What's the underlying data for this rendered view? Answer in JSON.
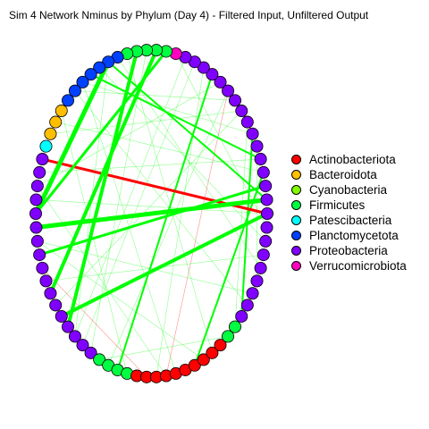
{
  "title": "Sim 4 Network Nminus by Phylum (Day 4) - Filtered Input, Unfiltered Output",
  "legend": [
    {
      "label": "Actinobacteriota",
      "color": "#ff0000"
    },
    {
      "label": "Bacteroidota",
      "color": "#ffbf00"
    },
    {
      "label": "Cyanobacteria",
      "color": "#80ff00"
    },
    {
      "label": "Firmicutes",
      "color": "#00ff40"
    },
    {
      "label": "Patescibacteria",
      "color": "#00ffff"
    },
    {
      "label": "Planctomycetota",
      "color": "#0040ff"
    },
    {
      "label": "Proteobacteria",
      "color": "#8000ff"
    },
    {
      "label": "Verrucomicrobiota",
      "color": "#ff00bf"
    }
  ],
  "edge_colors": {
    "positive": "#00ff00",
    "negative": "#ff0000"
  },
  "nodes": [
    "Proteobacteria",
    "Proteobacteria",
    "Proteobacteria",
    "Proteobacteria",
    "Proteobacteria",
    "Proteobacteria",
    "Proteobacteria",
    "Proteobacteria",
    "Proteobacteria",
    "Proteobacteria",
    "Proteobacteria",
    "Proteobacteria",
    "Proteobacteria",
    "Proteobacteria",
    "Proteobacteria",
    "Proteobacteria",
    "Verrucomicrobiota",
    "Firmicutes",
    "Firmicutes",
    "Firmicutes",
    "Firmicutes",
    "Firmicutes",
    "Planctomycetota",
    "Planctomycetota",
    "Planctomycetota",
    "Planctomycetota",
    "Planctomycetota",
    "Planctomycetota",
    "Planctomycetota",
    "Bacteroidota",
    "Bacteroidota",
    "Bacteroidota",
    "Patescibacteria",
    "Proteobacteria",
    "Proteobacteria",
    "Proteobacteria",
    "Proteobacteria",
    "Proteobacteria",
    "Proteobacteria",
    "Proteobacteria",
    "Proteobacteria",
    "Proteobacteria",
    "Proteobacteria",
    "Proteobacteria",
    "Proteobacteria",
    "Proteobacteria",
    "Proteobacteria",
    "Proteobacteria",
    "Proteobacteria",
    "Proteobacteria",
    "Firmicutes",
    "Firmicutes",
    "Firmicutes",
    "Firmicutes",
    "Actinobacteriota",
    "Actinobacteriota",
    "Actinobacteriota",
    "Actinobacteriota",
    "Actinobacteriota",
    "Actinobacteriota",
    "Actinobacteriota",
    "Actinobacteriota",
    "Actinobacteriota",
    "Actinobacteriota",
    "Firmicutes",
    "Firmicutes",
    "Proteobacteria",
    "Proteobacteria",
    "Proteobacteria",
    "Proteobacteria",
    "Proteobacteria",
    "Proteobacteria",
    "Proteobacteria",
    "Proteobacteria"
  ],
  "edges": [
    {
      "a": 0,
      "b": 33,
      "w": 3,
      "sign": "negative"
    },
    {
      "a": 0,
      "b": 45,
      "w": 4,
      "sign": "positive"
    },
    {
      "a": 1,
      "b": 38,
      "w": 5,
      "sign": "positive"
    },
    {
      "a": 2,
      "b": 40,
      "w": 3,
      "sign": "positive"
    },
    {
      "a": 3,
      "b": 60,
      "w": 2,
      "sign": "positive"
    },
    {
      "a": 4,
      "b": 34,
      "w": 1,
      "sign": "positive"
    },
    {
      "a": 6,
      "b": 66,
      "w": 2,
      "sign": "positive"
    },
    {
      "a": 8,
      "b": 31,
      "w": 1,
      "sign": "positive"
    },
    {
      "a": 10,
      "b": 57,
      "w": 1,
      "sign": "negative"
    },
    {
      "a": 12,
      "b": 52,
      "w": 2,
      "sign": "positive"
    },
    {
      "a": 14,
      "b": 48,
      "w": 1,
      "sign": "positive"
    },
    {
      "a": 17,
      "b": 37,
      "w": 3,
      "sign": "positive"
    },
    {
      "a": 18,
      "b": 43,
      "w": 4,
      "sign": "positive"
    },
    {
      "a": 20,
      "b": 46,
      "w": 4,
      "sign": "positive"
    },
    {
      "a": 23,
      "b": 37,
      "w": 5,
      "sign": "positive"
    },
    {
      "a": 23,
      "b": 47,
      "w": 1,
      "sign": "positive"
    },
    {
      "a": 23,
      "b": 1,
      "w": 2,
      "sign": "positive"
    },
    {
      "a": 25,
      "b": 4,
      "w": 2,
      "sign": "positive"
    },
    {
      "a": 26,
      "b": 6,
      "w": 1,
      "sign": "positive"
    },
    {
      "a": 27,
      "b": 9,
      "w": 1,
      "sign": "positive"
    },
    {
      "a": 30,
      "b": 3,
      "w": 1,
      "sign": "positive"
    },
    {
      "a": 35,
      "b": 57,
      "w": 1,
      "sign": "positive"
    },
    {
      "a": 35,
      "b": 11,
      "w": 1,
      "sign": "positive"
    },
    {
      "a": 36,
      "b": 0,
      "w": 1,
      "sign": "positive"
    },
    {
      "a": 39,
      "b": 68,
      "w": 1,
      "sign": "positive"
    },
    {
      "a": 41,
      "b": 55,
      "w": 1,
      "sign": "negative"
    },
    {
      "a": 44,
      "b": 8,
      "w": 1,
      "sign": "positive"
    },
    {
      "a": 47,
      "b": 15,
      "w": 1,
      "sign": "positive"
    },
    {
      "a": 49,
      "b": 19,
      "w": 1,
      "sign": "positive"
    },
    {
      "a": 51,
      "b": 10,
      "w": 1,
      "sign": "positive"
    },
    {
      "a": 53,
      "b": 29,
      "w": 1,
      "sign": "positive"
    },
    {
      "a": 56,
      "b": 13,
      "w": 1,
      "sign": "positive"
    },
    {
      "a": 58,
      "b": 26,
      "w": 1,
      "sign": "positive"
    },
    {
      "a": 61,
      "b": 39,
      "w": 1,
      "sign": "positive"
    },
    {
      "a": 62,
      "b": 21,
      "w": 1,
      "sign": "positive"
    },
    {
      "a": 64,
      "b": 50,
      "w": 1,
      "sign": "positive"
    },
    {
      "a": 65,
      "b": 7,
      "w": 1,
      "sign": "positive"
    },
    {
      "a": 67,
      "b": 27,
      "w": 1,
      "sign": "positive"
    },
    {
      "a": 69,
      "b": 5,
      "w": 1,
      "sign": "positive"
    },
    {
      "a": 70,
      "b": 22,
      "w": 1,
      "sign": "positive"
    },
    {
      "a": 71,
      "b": 42,
      "w": 1,
      "sign": "positive"
    },
    {
      "a": 72,
      "b": 24,
      "w": 1,
      "sign": "positive"
    },
    {
      "a": 73,
      "b": 16,
      "w": 1,
      "sign": "positive"
    }
  ]
}
